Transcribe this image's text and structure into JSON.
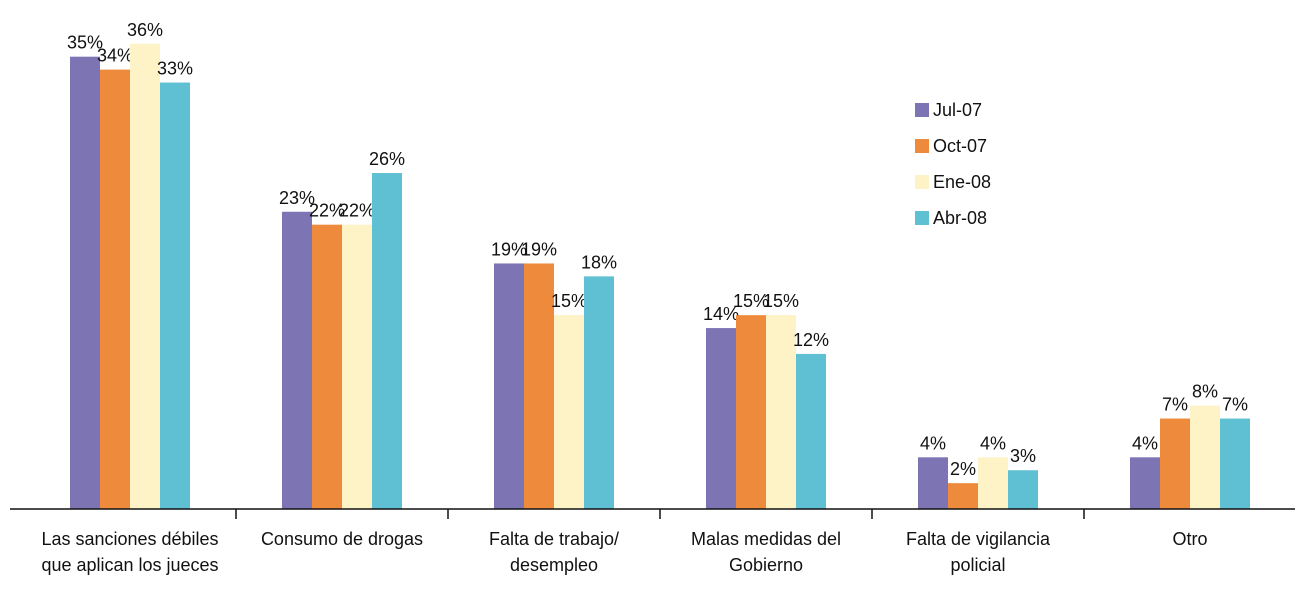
{
  "chart_data": {
    "type": "bar",
    "categories": [
      "Las sanciones débiles que aplican los jueces",
      "Consumo de drogas",
      "Falta de trabajo/ desempleo",
      "Malas medidas del Gobierno",
      "Falta de vigilancia policial",
      "Otro"
    ],
    "series": [
      {
        "name": "Jul-07",
        "color": "#7d74b3",
        "values": [
          35,
          23,
          19,
          14,
          4,
          4
        ],
        "value_labels": [
          "35%",
          "23%",
          "19%",
          "14%",
          "4%",
          "4%"
        ]
      },
      {
        "name": "Oct-07",
        "color": "#ee8a3c",
        "values": [
          34,
          22,
          19,
          15,
          2,
          7
        ],
        "value_labels": [
          "34%",
          "22%",
          "19%",
          "15%",
          "2%",
          "7%"
        ]
      },
      {
        "name": "Ene-08",
        "color": "#fdf3c6",
        "values": [
          36,
          22,
          15,
          15,
          4,
          8
        ],
        "value_labels": [
          "36%",
          "22%",
          "15%",
          "15%",
          "4%",
          "8%"
        ]
      },
      {
        "name": "Abr-08",
        "color": "#5fc0d3",
        "values": [
          33,
          26,
          18,
          12,
          3,
          7
        ],
        "value_labels": [
          "33%",
          "26%",
          "18%",
          "12%",
          "3%",
          "7%"
        ]
      }
    ],
    "ylim": [
      0,
      39
    ],
    "legend": "upper right"
  }
}
